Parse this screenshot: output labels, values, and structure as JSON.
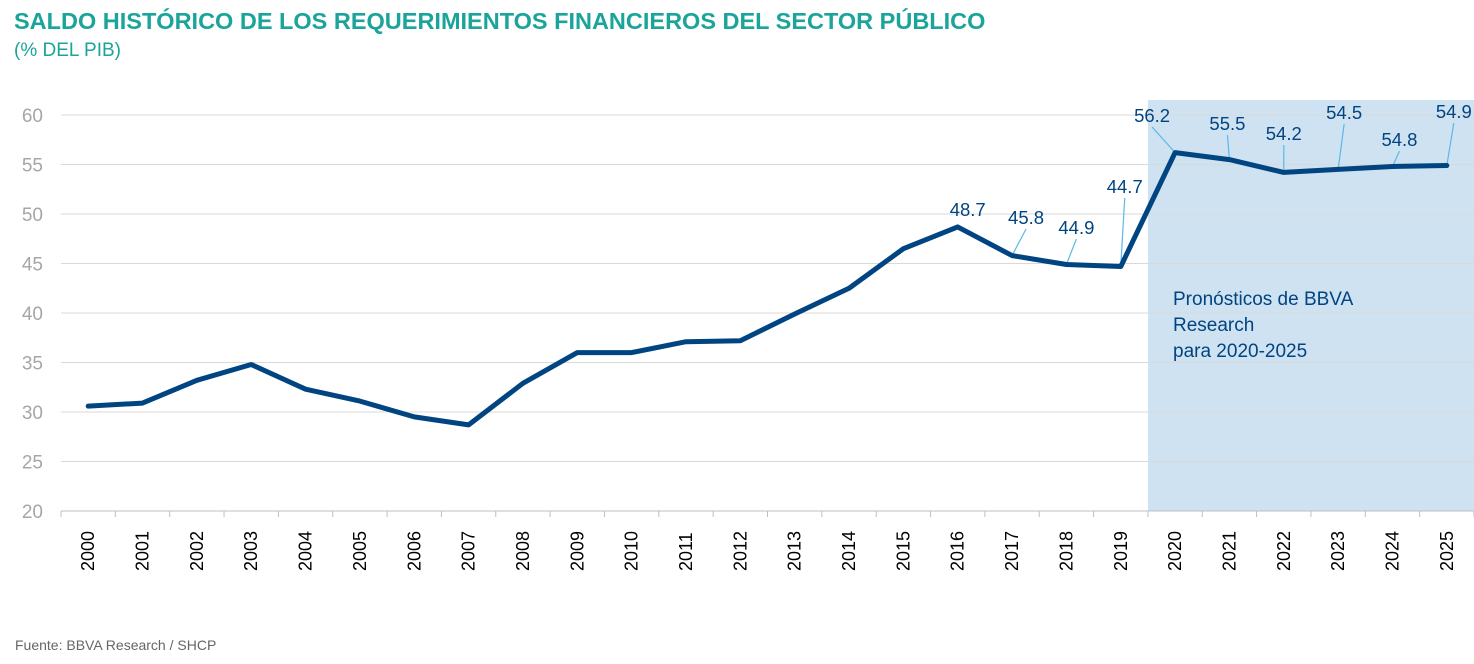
{
  "header": {
    "title": "SALDO HISTÓRICO DE LOS REQUERIMIENTOS FINANCIEROS DEL SECTOR PÚBLICO",
    "subtitle": "(% DEL PIB)"
  },
  "footer": {
    "source": "Fuente: BBVA Research / SHCP"
  },
  "colors": {
    "title": "#1aa49a",
    "line": "#004481",
    "forecast_band": "#cfe2f1",
    "leader": "#5bb8e8",
    "grid": "#d9d9d9",
    "axis_text": "#a6a6a6"
  },
  "chart_data": {
    "type": "line",
    "title": "SALDO HISTÓRICO DE LOS REQUERIMIENTOS FINANCIEROS DEL SECTOR PÚBLICO",
    "subtitle": "(% DEL PIB)",
    "xlabel": "",
    "ylabel": "",
    "ylim": [
      20,
      60
    ],
    "yticks": [
      20,
      25,
      30,
      35,
      40,
      45,
      50,
      55,
      60
    ],
    "grid": "horizontal",
    "categories": [
      "2000",
      "2001",
      "2002",
      "2003",
      "2004",
      "2005",
      "2006",
      "2007",
      "2008",
      "2009",
      "2010",
      "2011",
      "2012",
      "2013",
      "2014",
      "2015",
      "2016",
      "2017",
      "2018",
      "2019",
      "2020",
      "2021",
      "2022",
      "2023",
      "2024",
      "2025"
    ],
    "series": [
      {
        "values": [
          30.6,
          30.9,
          33.2,
          34.8,
          32.3,
          31.1,
          29.5,
          28.7,
          32.9,
          36.0,
          36.0,
          37.1,
          37.2,
          39.9,
          42.5,
          46.5,
          48.7,
          45.8,
          44.9,
          44.7,
          56.2,
          55.5,
          54.2,
          54.5,
          54.8,
          54.9
        ]
      }
    ],
    "data_labels": [
      {
        "year": "2016",
        "text": "48.7"
      },
      {
        "year": "2017",
        "text": "45.8"
      },
      {
        "year": "2018",
        "text": "44.9"
      },
      {
        "year": "2019",
        "text": "44.7"
      },
      {
        "year": "2020",
        "text": "56.2"
      },
      {
        "year": "2021",
        "text": "55.5"
      },
      {
        "year": "2022",
        "text": "54.2"
      },
      {
        "year": "2023",
        "text": "54.5"
      },
      {
        "year": "2024",
        "text": "54.8"
      },
      {
        "year": "2025",
        "text": "54.9"
      }
    ],
    "forecast_region": {
      "from": "2020",
      "to": "2025",
      "annotation_lines": [
        "Pronósticos de BBVA",
        "Research",
        "para 2020-2025"
      ]
    }
  }
}
